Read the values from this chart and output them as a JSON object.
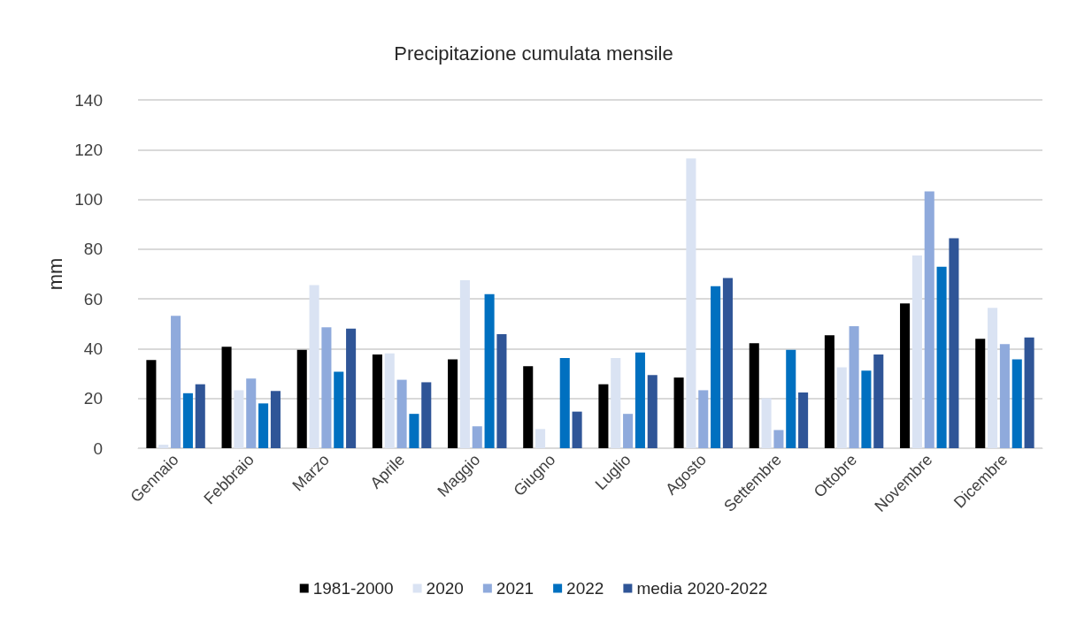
{
  "chart_data": {
    "type": "bar",
    "title": "Precipitazione cumulata mensile",
    "ylabel": "mm",
    "categories": [
      "Gennaio",
      "Febbraio",
      "Marzo",
      "Aprile",
      "Maggio",
      "Giugno",
      "Luglio",
      "Agosto",
      "Settembre",
      "Ottobre",
      "Novembre",
      "Dicembre"
    ],
    "series": [
      {
        "name": "1981-2000",
        "color": "#000000",
        "values": [
          35.4,
          40.8,
          39.5,
          37.7,
          35.7,
          33.0,
          25.7,
          28.4,
          42.2,
          45.4,
          58.2,
          44.0
        ]
      },
      {
        "name": "2020",
        "color": "#dae3f3",
        "values": [
          1.4,
          23.3,
          65.6,
          38.1,
          67.5,
          7.7,
          36.2,
          116.5,
          20.1,
          32.5,
          77.5,
          56.4
        ]
      },
      {
        "name": "2021",
        "color": "#8faadc",
        "values": [
          53.2,
          28.0,
          48.6,
          27.5,
          8.8,
          null,
          13.8,
          23.3,
          7.3,
          49.0,
          103.2,
          41.8
        ]
      },
      {
        "name": "2022",
        "color": "#0070c0",
        "values": [
          22.1,
          18.0,
          30.7,
          13.8,
          61.9,
          36.2,
          38.5,
          65.1,
          39.5,
          31.2,
          72.9,
          35.7
        ]
      },
      {
        "name": "media 2020-2022",
        "color": "#2f5597",
        "values": [
          25.7,
          23.0,
          48.1,
          26.5,
          45.8,
          14.7,
          29.4,
          68.4,
          22.4,
          37.7,
          84.4,
          44.5
        ]
      }
    ],
    "ylim": [
      0,
      140
    ],
    "yticks": [
      0,
      20,
      40,
      60,
      80,
      100,
      120,
      140
    ],
    "grid": "y",
    "legend": "bottom"
  }
}
